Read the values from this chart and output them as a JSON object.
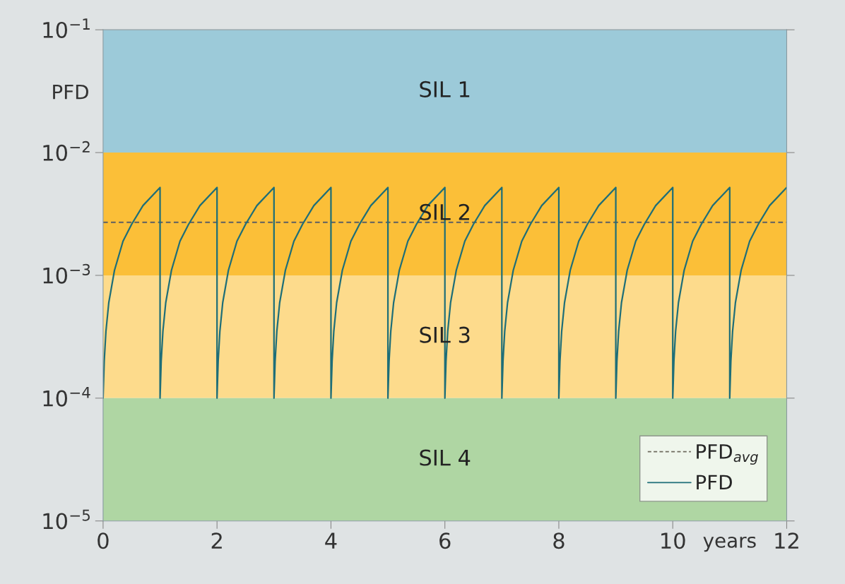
{
  "chart_data": {
    "type": "line",
    "xlabel": "years",
    "ylabel": "PFD",
    "log": "y",
    "xlim": [
      0,
      12
    ],
    "xticks": [
      0,
      2,
      4,
      6,
      8,
      10,
      12
    ],
    "ylim": [
      1e-05,
      0.1
    ],
    "yticks": [
      {
        "value": 1e-05,
        "label": "10$^{−5}$"
      },
      {
        "value": 0.0001,
        "label": "10$^{−4}$"
      },
      {
        "value": 0.001,
        "label": "10$^{−3}$"
      },
      {
        "value": 0.01,
        "label": "10$^{−2}$"
      },
      {
        "value": 0.1,
        "label": "10$^{−1}$"
      }
    ],
    "grid": false,
    "legend": "bottom right",
    "bands": [
      {
        "axis": "y",
        "from": 0.01,
        "to": 0.1,
        "label": "SIL 1",
        "color": "#9ccad9"
      },
      {
        "axis": "y",
        "from": 0.001,
        "to": 0.01,
        "label": "SIL 2",
        "color": "#fbbf38"
      },
      {
        "axis": "y",
        "from": 0.0001,
        "to": 0.001,
        "label": "SIL 3",
        "color": "#fddb8c"
      },
      {
        "axis": "y",
        "from": 1e-05,
        "to": 0.0001,
        "label": "SIL 4",
        "color": "#afd6a3"
      }
    ],
    "series": [
      {
        "name": "PFD$_{avg}$",
        "color": "#6e6a5e",
        "line_style": "dashed",
        "x": [
          0,
          12
        ],
        "values": [
          0.0027,
          0.0027
        ]
      },
      {
        "name": "PFD",
        "color": "#1e6e78",
        "line_style": "solid",
        "x": [
          0,
          0.02,
          0.05,
          0.1,
          0.2,
          0.35,
          0.5,
          0.7,
          1,
          1,
          1.02,
          1.05,
          1.1,
          1.2,
          1.35,
          1.5,
          1.7,
          2,
          2,
          2.02,
          2.05,
          2.1,
          2.2,
          2.35,
          2.5,
          2.7,
          3,
          3,
          3.02,
          3.05,
          3.1,
          3.2,
          3.35,
          3.5,
          3.7,
          4,
          4,
          4.02,
          4.05,
          4.1,
          4.2,
          4.35,
          4.5,
          4.7,
          5,
          5,
          5.02,
          5.05,
          5.1,
          5.2,
          5.35,
          5.5,
          5.7,
          6,
          6,
          6.02,
          6.05,
          6.1,
          6.2,
          6.35,
          6.5,
          6.7,
          7,
          7,
          7.02,
          7.05,
          7.1,
          7.2,
          7.35,
          7.5,
          7.7,
          8,
          8,
          8.02,
          8.05,
          8.1,
          8.2,
          8.35,
          8.5,
          8.7,
          9,
          9,
          9.02,
          9.05,
          9.1,
          9.2,
          9.35,
          9.5,
          9.7,
          10,
          10,
          10.02,
          10.05,
          10.1,
          10.2,
          10.35,
          10.5,
          10.7,
          11,
          11,
          11.02,
          11.05,
          11.1,
          11.2,
          11.35,
          11.5,
          11.7,
          12
        ],
        "values": [
          0.0001,
          0.0002,
          0.00035,
          0.0006,
          0.0011,
          0.0019,
          0.0026,
          0.0037,
          0.0052,
          0.0001,
          0.0002,
          0.00035,
          0.0006,
          0.0011,
          0.0019,
          0.0026,
          0.0037,
          0.0052,
          0.0001,
          0.0002,
          0.00035,
          0.0006,
          0.0011,
          0.0019,
          0.0026,
          0.0037,
          0.0052,
          0.0001,
          0.0002,
          0.00035,
          0.0006,
          0.0011,
          0.0019,
          0.0026,
          0.0037,
          0.0052,
          0.0001,
          0.0002,
          0.00035,
          0.0006,
          0.0011,
          0.0019,
          0.0026,
          0.0037,
          0.0052,
          0.0001,
          0.0002,
          0.00035,
          0.0006,
          0.0011,
          0.0019,
          0.0026,
          0.0037,
          0.0052,
          0.0001,
          0.0002,
          0.00035,
          0.0006,
          0.0011,
          0.0019,
          0.0026,
          0.0037,
          0.0052,
          0.0001,
          0.0002,
          0.00035,
          0.0006,
          0.0011,
          0.0019,
          0.0026,
          0.0037,
          0.0052,
          0.0001,
          0.0002,
          0.00035,
          0.0006,
          0.0011,
          0.0019,
          0.0026,
          0.0037,
          0.0052,
          0.0001,
          0.0002,
          0.00035,
          0.0006,
          0.0011,
          0.0019,
          0.0026,
          0.0037,
          0.0052,
          0.0001,
          0.0002,
          0.00035,
          0.0006,
          0.0011,
          0.0019,
          0.0026,
          0.0037,
          0.0052,
          0.0001,
          0.0002,
          0.00035,
          0.0006,
          0.0011,
          0.0019,
          0.0026,
          0.0037,
          0.0052
        ]
      }
    ]
  }
}
